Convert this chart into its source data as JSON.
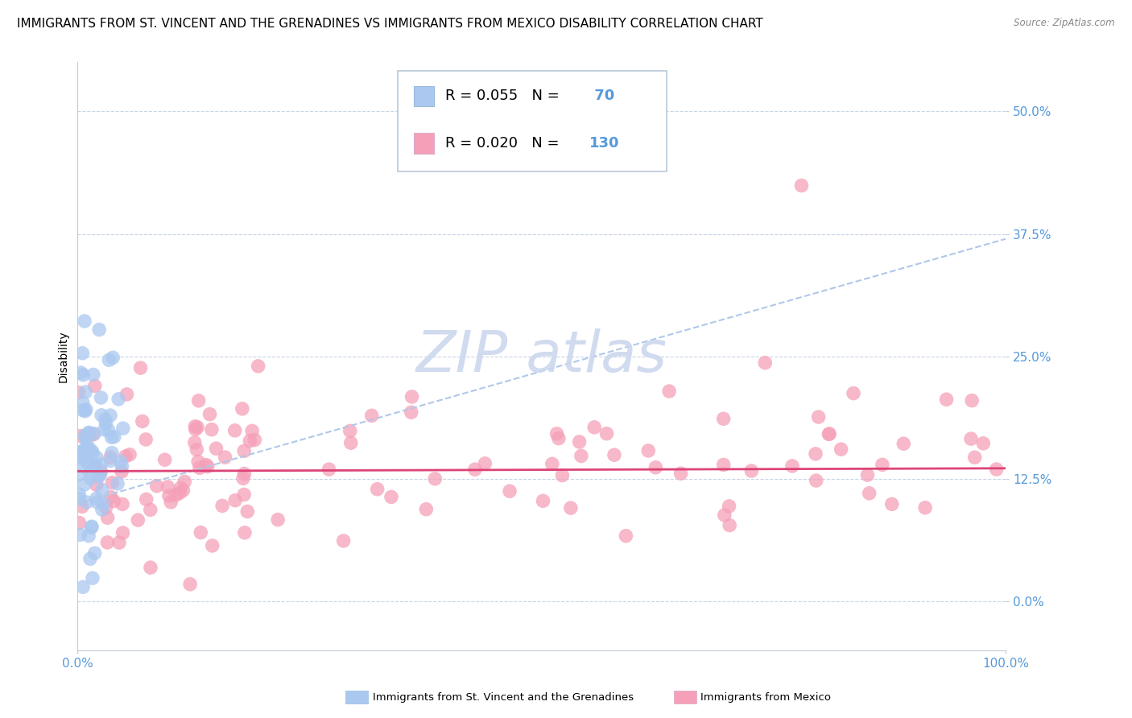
{
  "title": "IMMIGRANTS FROM ST. VINCENT AND THE GRENADINES VS IMMIGRANTS FROM MEXICO DISABILITY CORRELATION CHART",
  "source": "Source: ZipAtlas.com",
  "ylabel": "Disability",
  "xlim": [
    0,
    1.0
  ],
  "ylim": [
    -0.05,
    0.55
  ],
  "yticks": [
    0.0,
    0.125,
    0.25,
    0.375,
    0.5
  ],
  "ytick_labels": [
    "0.0%",
    "12.5%",
    "25.0%",
    "37.5%",
    "50.0%"
  ],
  "xtick_labels": [
    "0.0%",
    "100.0%"
  ],
  "legend_r1": "R = 0.055",
  "legend_n1": "N =  70",
  "legend_r2": "R = 0.020",
  "legend_n2": "N = 130",
  "color_blue": "#aac8f0",
  "color_pink": "#f5a0b8",
  "color_blue_dark": "#5599dd",
  "color_pink_dark": "#dd4477",
  "trendline_blue": "#b0c8e8",
  "trendline_pink": "#dd4477",
  "watermark_color": "#ccd8ee",
  "series1_name": "Immigrants from St. Vincent and the Grenadines",
  "series2_name": "Immigrants from Mexico",
  "background_color": "#ffffff",
  "grid_color": "#c8d4e8",
  "title_fontsize": 11,
  "axis_label_fontsize": 10,
  "tick_fontsize": 11,
  "legend_fontsize": 13
}
